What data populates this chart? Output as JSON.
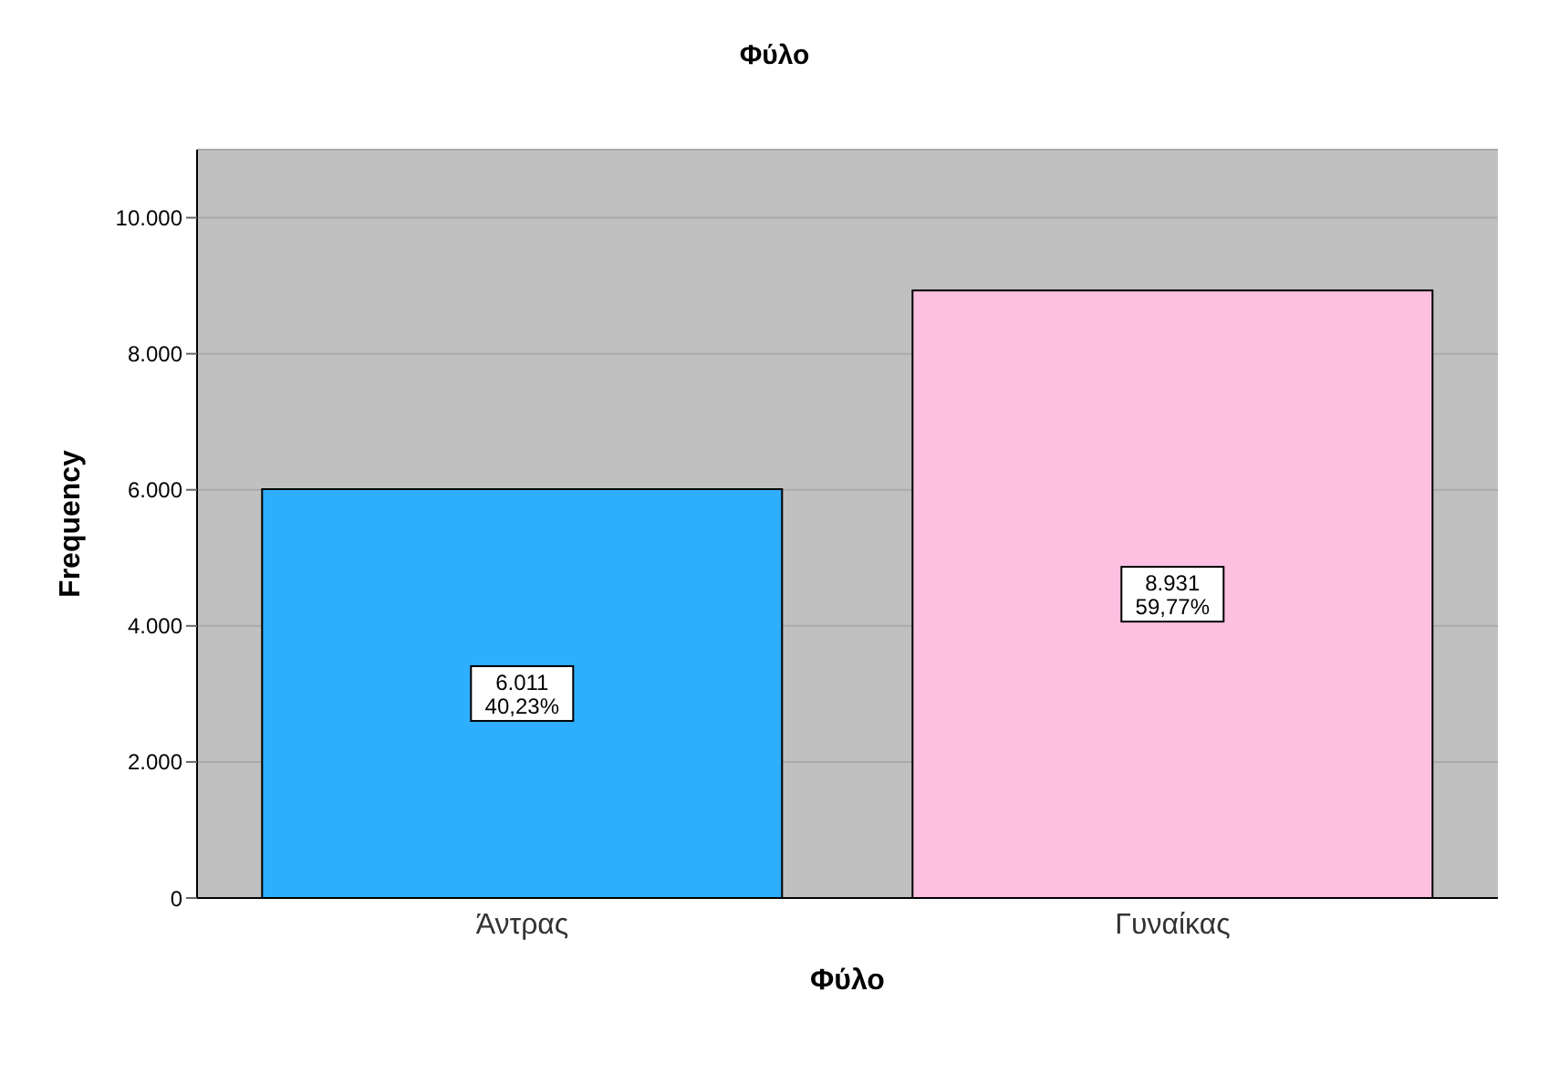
{
  "chart_data": {
    "type": "bar",
    "title": "Φύλο",
    "xlabel": "Φύλο",
    "ylabel": "Frequency",
    "categories": [
      "Άντρας",
      "Γυναίκας"
    ],
    "values": [
      6011,
      8931
    ],
    "colors": [
      "#2eaefe",
      "#fdc0e0"
    ],
    "value_labels": [
      "6.011\n40,23%",
      "8.931\n59,77%"
    ],
    "ylim": [
      0,
      11000
    ],
    "yticks": [
      {
        "value": 0,
        "label": "0"
      },
      {
        "value": 2000,
        "label": "2.000"
      },
      {
        "value": 4000,
        "label": "4.000"
      },
      {
        "value": 6000,
        "label": "6.000"
      },
      {
        "value": 8000,
        "label": "8.000"
      },
      {
        "value": 10000,
        "label": "10.000"
      }
    ],
    "grid": "y"
  }
}
